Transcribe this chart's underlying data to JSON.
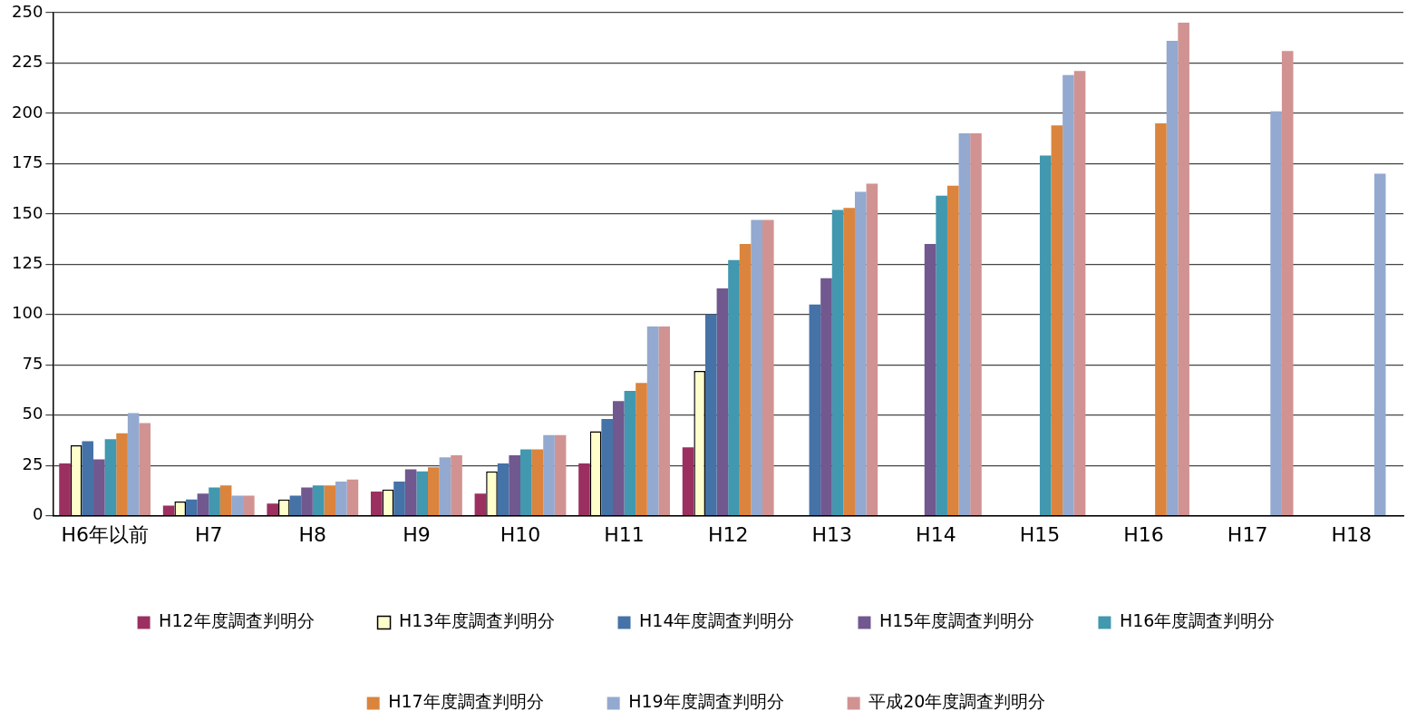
{
  "chart_data": {
    "type": "bar",
    "categories": [
      "H6年以前",
      "H7",
      "H8",
      "H9",
      "H10",
      "H11",
      "H12",
      "H13",
      "H14",
      "H15",
      "H16",
      "H17",
      "H18"
    ],
    "series": [
      {
        "name": "H12年度調査判明分",
        "color": "#9b3060",
        "values": [
          26,
          5,
          6,
          12,
          11,
          26,
          34,
          null,
          null,
          null,
          null,
          null,
          null
        ]
      },
      {
        "name": "H13年度調査判明分",
        "color": "#ffffcc",
        "values": [
          35,
          7,
          8,
          13,
          22,
          42,
          72,
          null,
          null,
          null,
          null,
          null,
          null
        ]
      },
      {
        "name": "H14年度調査判明分",
        "color": "#4572a7",
        "values": [
          37,
          8,
          10,
          17,
          26,
          48,
          100,
          105,
          null,
          null,
          null,
          null,
          null
        ]
      },
      {
        "name": "H15年度調査判明分",
        "color": "#71588f",
        "values": [
          28,
          11,
          14,
          23,
          30,
          57,
          113,
          118,
          135,
          null,
          null,
          null,
          null
        ]
      },
      {
        "name": "H16年度調査判明分",
        "color": "#4198af",
        "values": [
          38,
          14,
          15,
          22,
          33,
          62,
          127,
          152,
          159,
          179,
          null,
          null,
          null
        ]
      },
      {
        "name": "H17年度調査判明分",
        "color": "#db843d",
        "values": [
          41,
          15,
          15,
          24,
          33,
          66,
          135,
          153,
          164,
          194,
          195,
          null,
          null
        ]
      },
      {
        "name": "H19年度調査判明分",
        "color": "#93a9cf",
        "values": [
          51,
          10,
          17,
          29,
          40,
          94,
          147,
          161,
          190,
          219,
          236,
          201,
          170
        ]
      },
      {
        "name": "平成20年度調査判明分",
        "color": "#d19392",
        "values": [
          46,
          10,
          18,
          30,
          40,
          94,
          147,
          165,
          190,
          221,
          245,
          231,
          null
        ]
      }
    ],
    "ylim": [
      0,
      250
    ],
    "yticks": [
      0,
      25,
      50,
      75,
      100,
      125,
      150,
      175,
      200,
      225,
      250
    ],
    "grid": "y",
    "legend": "bottom"
  }
}
